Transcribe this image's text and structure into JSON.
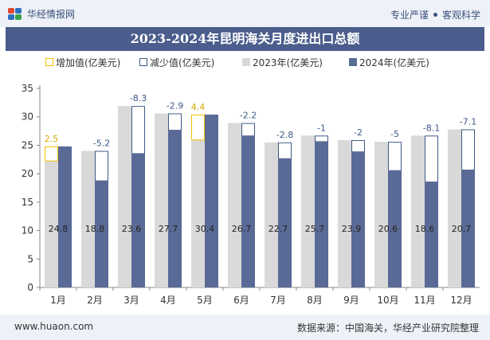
{
  "header": {
    "logo_text": "华经情报网",
    "slogan_left": "专业严谨",
    "slogan_right": "客观科学"
  },
  "footer": {
    "website": "www.huaon.com",
    "source": "数据来源：中国海关，华经产业研究院整理"
  },
  "colors": {
    "bar_2023": "#d9d9d9",
    "bar_2024": "#5a6a96",
    "increase_outline": "#f2c200",
    "decrease_outline": "#3d5a88",
    "increase_label": "#d4a900",
    "decrease_label": "#3d5a88",
    "header_bg": "#4a5d8c"
  },
  "chart_data": {
    "type": "bar",
    "title": "2023-2024年昆明海关月度进出口总额",
    "categories": [
      "1月",
      "2月",
      "3月",
      "4月",
      "5月",
      "6月",
      "7月",
      "8月",
      "9月",
      "10月",
      "11月",
      "12月"
    ],
    "series": [
      {
        "name": "2023年(亿美元)",
        "values": [
          22.3,
          24.0,
          31.9,
          30.6,
          26.0,
          28.9,
          25.5,
          26.7,
          25.9,
          25.6,
          26.7,
          27.8
        ]
      },
      {
        "name": "2024年(亿美元)",
        "values": [
          24.8,
          18.8,
          23.6,
          27.7,
          30.4,
          26.7,
          22.7,
          25.7,
          23.9,
          20.6,
          18.6,
          20.7
        ]
      }
    ],
    "changes": [
      2.5,
      -5.2,
      -8.3,
      -2.9,
      4.4,
      -2.2,
      -2.8,
      -1,
      -2,
      -5,
      -8.1,
      -7.1
    ],
    "change_labels": [
      "2.5",
      "-5.2",
      "-8.3",
      "-2.9",
      "4.4",
      "-2.2",
      "-2.8",
      "-1",
      "-2",
      "-5",
      "-8.1",
      "-7.1"
    ],
    "value_labels_2024": [
      "24.8",
      "18.8",
      "23.6",
      "27.7",
      "30.4",
      "26.7",
      "22.7",
      "25.7",
      "23.9",
      "20.6",
      "18.6",
      "20.7"
    ],
    "legend": [
      "增加值(亿美元)",
      "减少值(亿美元)",
      "2023年(亿美元)",
      "2024年(亿美元)"
    ],
    "legend_position": "top",
    "ylim": [
      0,
      35
    ],
    "yticks": [
      "0",
      "5",
      "10",
      "15",
      "20",
      "25",
      "30",
      "35"
    ],
    "grid": false
  }
}
